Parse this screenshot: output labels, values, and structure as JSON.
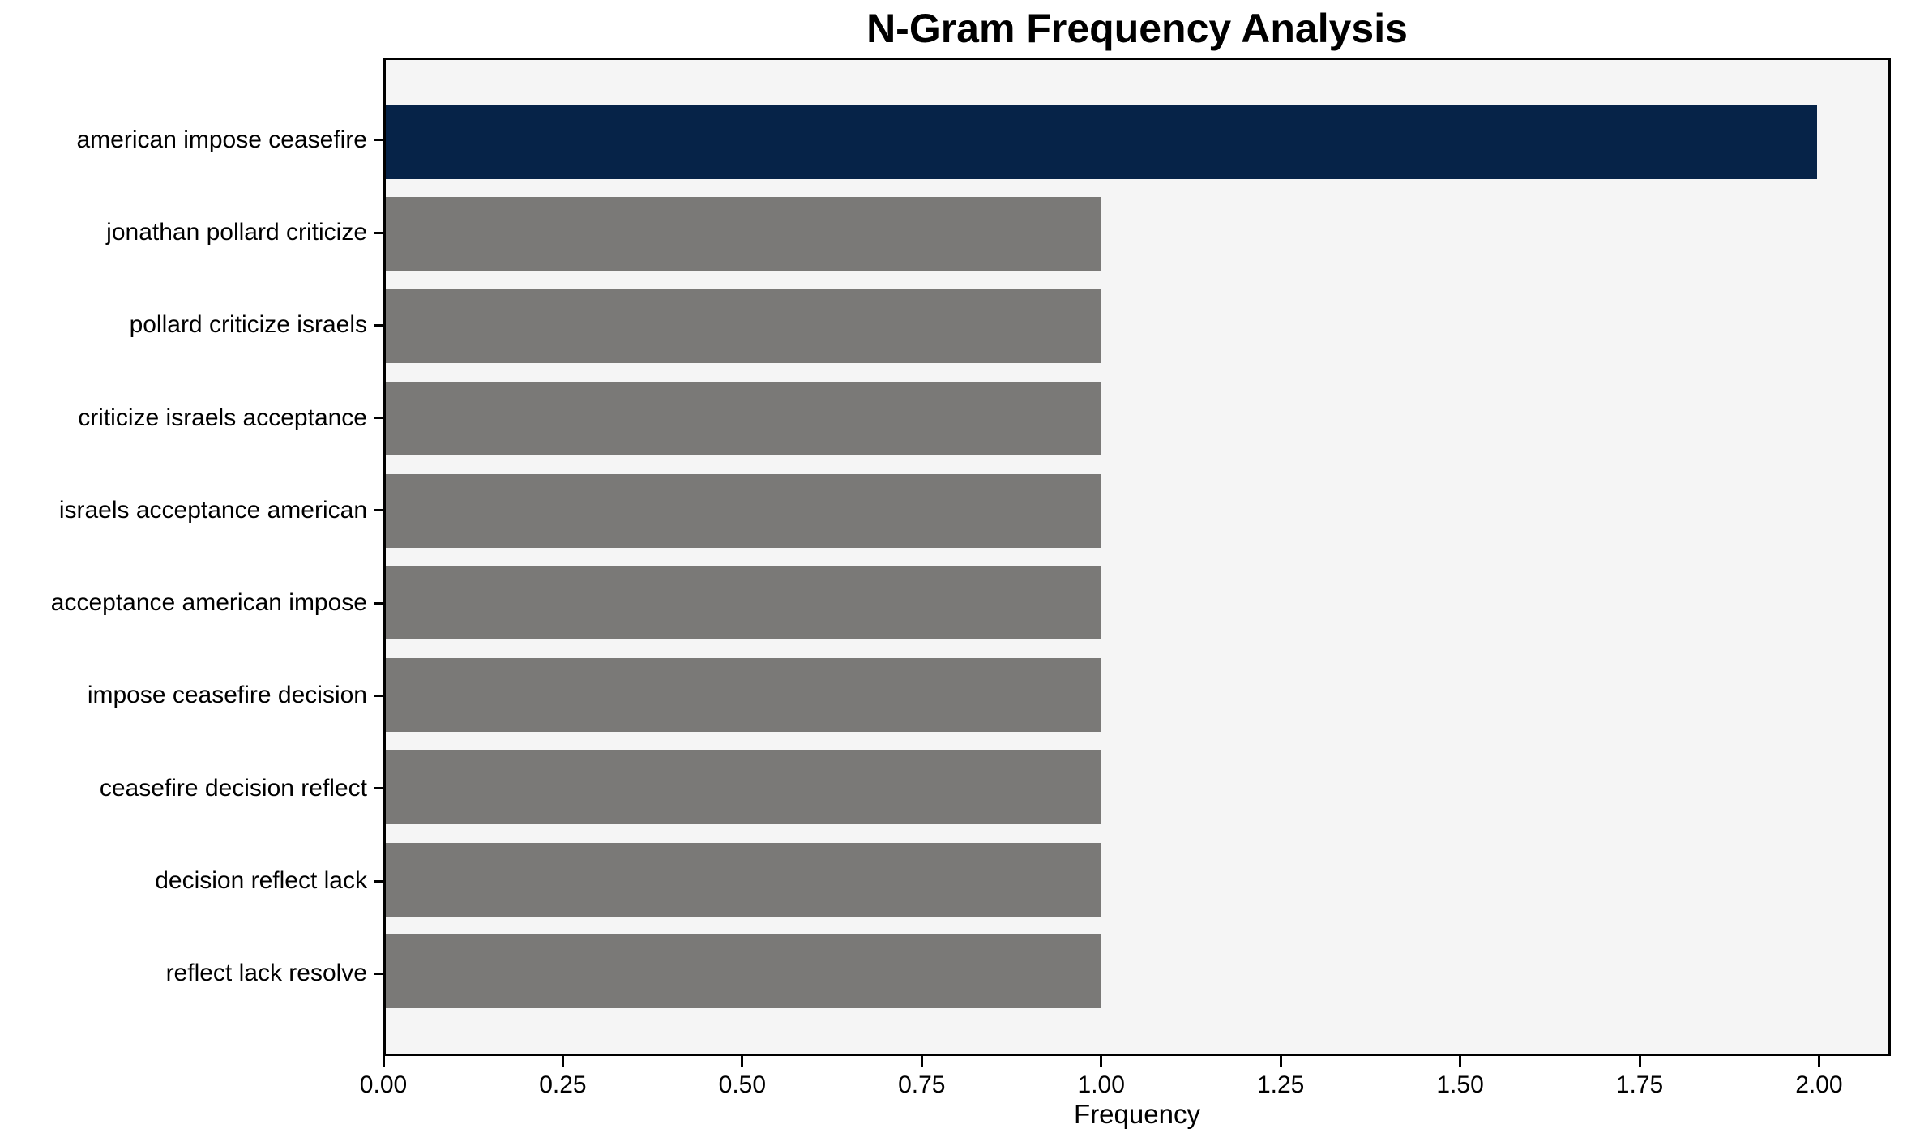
{
  "chart_data": {
    "type": "bar",
    "orientation": "horizontal",
    "title": "N-Gram Frequency Analysis",
    "xlabel": "Frequency",
    "categories": [
      "american impose ceasefire",
      "jonathan pollard criticize",
      "pollard criticize israels",
      "criticize israels acceptance",
      "israels acceptance american",
      "acceptance american impose",
      "impose ceasefire decision",
      "ceasefire decision reflect",
      "decision reflect lack",
      "reflect lack resolve"
    ],
    "values": [
      2,
      1,
      1,
      1,
      1,
      1,
      1,
      1,
      1,
      1
    ],
    "xlim": [
      0,
      2.1
    ],
    "x_ticks": [
      0,
      0.25,
      0.5,
      0.75,
      1,
      1.25,
      1.5,
      1.75,
      2
    ],
    "x_tick_labels": [
      "0.00",
      "0.25",
      "0.50",
      "0.75",
      "1.00",
      "1.25",
      "1.50",
      "1.75",
      "2.00"
    ],
    "grid": false,
    "legend_position": "none",
    "colors": {
      "highlight_bar": "#062348",
      "default_bar": "#7a7977",
      "plot_background": "#f5f5f5",
      "figure_background": "#ffffff",
      "axis": "#000000",
      "text": "#000000"
    }
  }
}
